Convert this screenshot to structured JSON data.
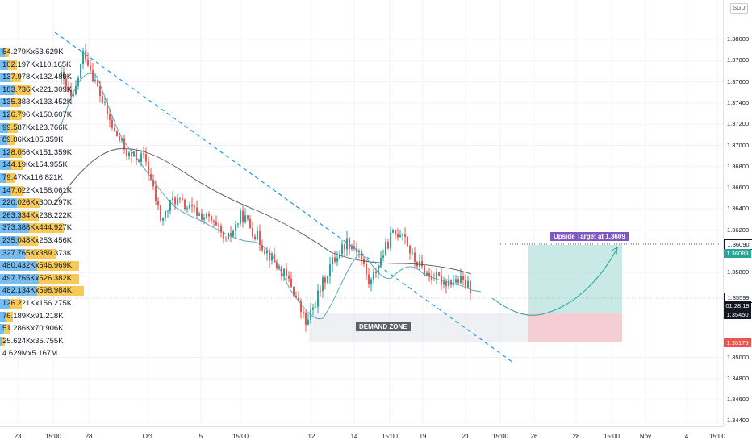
{
  "chart_data": {
    "type": "candlestick",
    "symbol_currency": "SGD",
    "y_axis": {
      "ticks": [
        "1.38000",
        "1.37800",
        "1.37600",
        "1.37400",
        "1.37200",
        "1.37000",
        "1.36800",
        "1.36600",
        "1.36400",
        "1.36200",
        "1.35800",
        "1.35000",
        "1.34800",
        "1.34600",
        "1.34400"
      ],
      "ylim": [
        1.344,
        1.384
      ]
    },
    "x_axis": {
      "ticks": [
        "23",
        "15:00",
        "28",
        "Oct",
        "5",
        "15:00",
        "12",
        "14",
        "15:00",
        "19",
        "21",
        "15:00",
        "26",
        "28",
        "15:00",
        "Nov",
        "4",
        "15:00"
      ]
    },
    "price_tags": [
      {
        "text": "1.36090",
        "color": "#131722",
        "bg": "#131722"
      },
      {
        "text": "1.36089",
        "color": "#26a69a",
        "bg": "#26a69a"
      },
      {
        "text": "1.35599",
        "color": "#ffffff",
        "bg": "#ffffff"
      },
      {
        "text": "01:28:19",
        "color": "#ffffff",
        "bg": "#ffffff"
      },
      {
        "text": "1.35450",
        "color": "#131722",
        "bg": "#131722"
      },
      {
        "text": "1.35175",
        "color": "#ef5350",
        "bg": "#ef5350"
      }
    ],
    "volume_profile": [
      {
        "label": "54.279Kx53.629K",
        "blue": 0.12,
        "yellow": 0.12
      },
      {
        "label": "102.197Kx110.165K",
        "blue": 0.22,
        "yellow": 0.23
      },
      {
        "label": "137.978Kx132.489K",
        "blue": 0.29,
        "yellow": 0.28
      },
      {
        "label": "183.736Kx221.309K",
        "blue": 0.38,
        "yellow": 0.46
      },
      {
        "label": "135.383Kx133.452K",
        "blue": 0.28,
        "yellow": 0.28
      },
      {
        "label": "126.796Kx150.607K",
        "blue": 0.27,
        "yellow": 0.32
      },
      {
        "label": "99.587Kx123.766K",
        "blue": 0.21,
        "yellow": 0.26
      },
      {
        "label": "89.86Kx105.359K",
        "blue": 0.19,
        "yellow": 0.22
      },
      {
        "label": "128.056Kx151.359K",
        "blue": 0.27,
        "yellow": 0.32
      },
      {
        "label": "144.19Kx154.955K",
        "blue": 0.3,
        "yellow": 0.32
      },
      {
        "label": "79.47Kx116.821K",
        "blue": 0.17,
        "yellow": 0.24
      },
      {
        "label": "147.022Kx158.061K",
        "blue": 0.31,
        "yellow": 0.33
      },
      {
        "label": "220.026Kx300.297K",
        "blue": 0.46,
        "yellow": 0.63
      },
      {
        "label": "263.334Kx236.222K",
        "blue": 0.55,
        "yellow": 0.49
      },
      {
        "label": "373.388Kx444.927K",
        "blue": 0.78,
        "yellow": 0.93
      },
      {
        "label": "235.048Kx253.456K",
        "blue": 0.49,
        "yellow": 0.53
      },
      {
        "label": "327.765Kx389.373K",
        "blue": 0.68,
        "yellow": 0.81
      },
      {
        "label": "480.432Kx546.969K",
        "blue": 1.0,
        "yellow": 1.14
      },
      {
        "label": "497.765Kx526.382K",
        "blue": 1.04,
        "yellow": 1.1
      },
      {
        "label": "482.134Kx598.984K",
        "blue": 1.0,
        "yellow": 1.25
      },
      {
        "label": "126.221Kx156.275K",
        "blue": 0.26,
        "yellow": 0.33
      },
      {
        "label": "76.189Kx91.218K",
        "blue": 0.16,
        "yellow": 0.19
      },
      {
        "label": "51.286Kx70.906K",
        "blue": 0.11,
        "yellow": 0.15
      },
      {
        "label": "25.624Kx35.755K",
        "blue": 0.05,
        "yellow": 0.07
      },
      {
        "label": "4.629Mx5.167M",
        "blue": 0,
        "yellow": 0
      }
    ],
    "annotations": {
      "demand_zone": "DEMAND ZONE",
      "upside_target": "Upside Target at 1.3609"
    },
    "colors": {
      "up": "#26a69a",
      "down": "#ef5350",
      "ma_fast": "#4aa3b0",
      "ma_slow": "#555555",
      "trendline": "#2196f3",
      "long_profit": "#b2dfdb",
      "long_loss": "#f5c6cb",
      "target_label": "#7e57c2"
    }
  },
  "ui": {
    "currency_button": "SGD"
  }
}
